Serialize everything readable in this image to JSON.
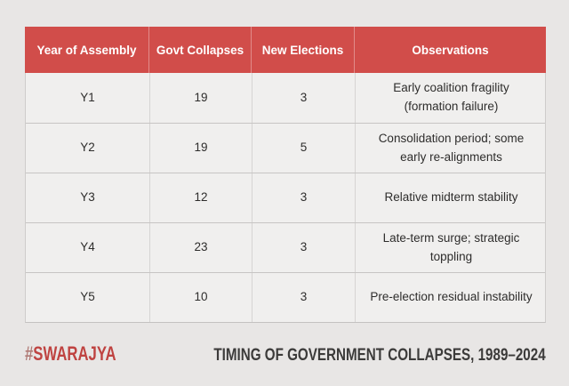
{
  "chart_data": {
    "type": "table",
    "title": "TIMING OF GOVERNMENT COLLAPSES, 1989–2024",
    "columns": [
      "Year of Assembly",
      "Govt Collapses",
      "New Elections",
      "Observations"
    ],
    "rows": [
      [
        "Y1",
        "19",
        "3",
        "Early coalition fragility (formation failure)"
      ],
      [
        "Y2",
        "19",
        "5",
        "Consolidation period; some early re-alignments"
      ],
      [
        "Y3",
        "12",
        "3",
        "Relative midterm stability"
      ],
      [
        "Y4",
        "23",
        "3",
        "Late-term surge; strategic toppling"
      ],
      [
        "Y5",
        "10",
        "3",
        "Pre-election residual instability"
      ]
    ],
    "legend_position": "none",
    "grid": "cell-borders"
  },
  "footer": {
    "brand_hash": "#",
    "brand_name": "SWARAJYA",
    "caption": "TIMING OF GOVERNMENT COLLAPSES, 1989–2024"
  },
  "colors": {
    "header_background": "#d14d4a",
    "header_text": "#ffffff",
    "row_background": "#f0efee",
    "page_background": "#e8e6e5",
    "body_text": "#2e2d2c",
    "brand_red": "#bf4341",
    "brand_hash_red": "#b07a75",
    "caption_text": "#3c3b3a"
  }
}
